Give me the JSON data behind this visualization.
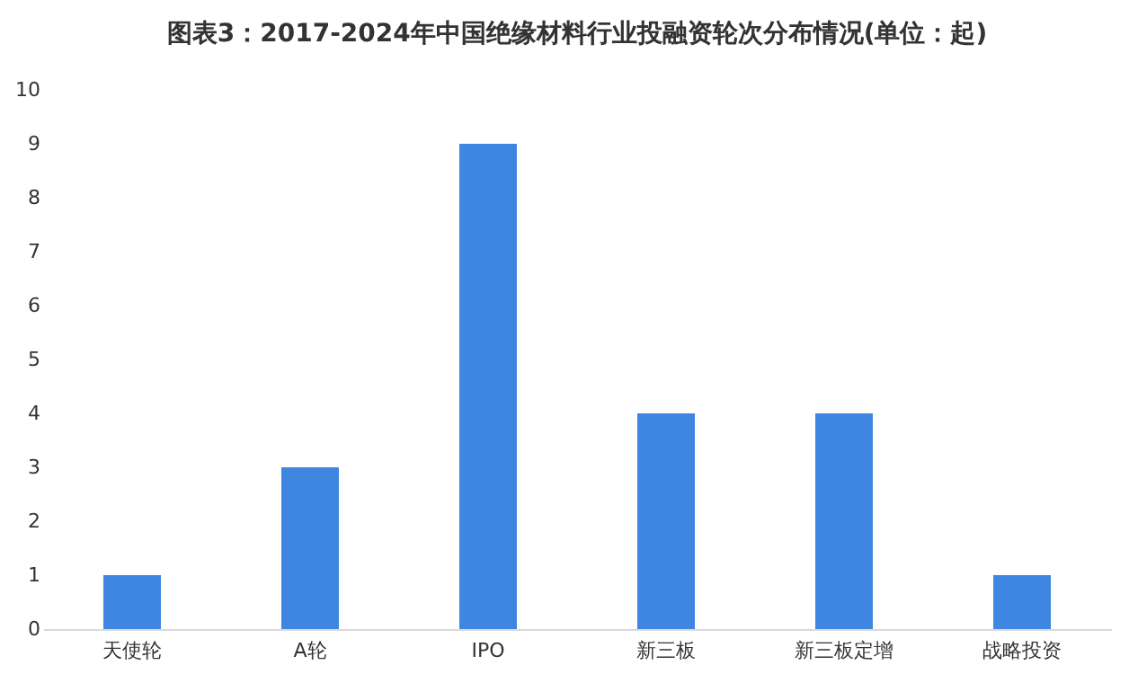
{
  "chart_data": {
    "type": "bar",
    "title": "图表3：2017-2024年中国绝缘材料行业投融资轮次分布情况(单位：起)",
    "categories": [
      "天使轮",
      "A轮",
      "IPO",
      "新三板",
      "新三板定增",
      "战略投资"
    ],
    "values": [
      1,
      3,
      9,
      4,
      4,
      1
    ],
    "color": "#3f86e0",
    "ylim": [
      0,
      10
    ],
    "yticks": [
      0,
      1,
      2,
      3,
      4,
      5,
      6,
      7,
      8,
      9,
      10
    ],
    "grid": false
  }
}
